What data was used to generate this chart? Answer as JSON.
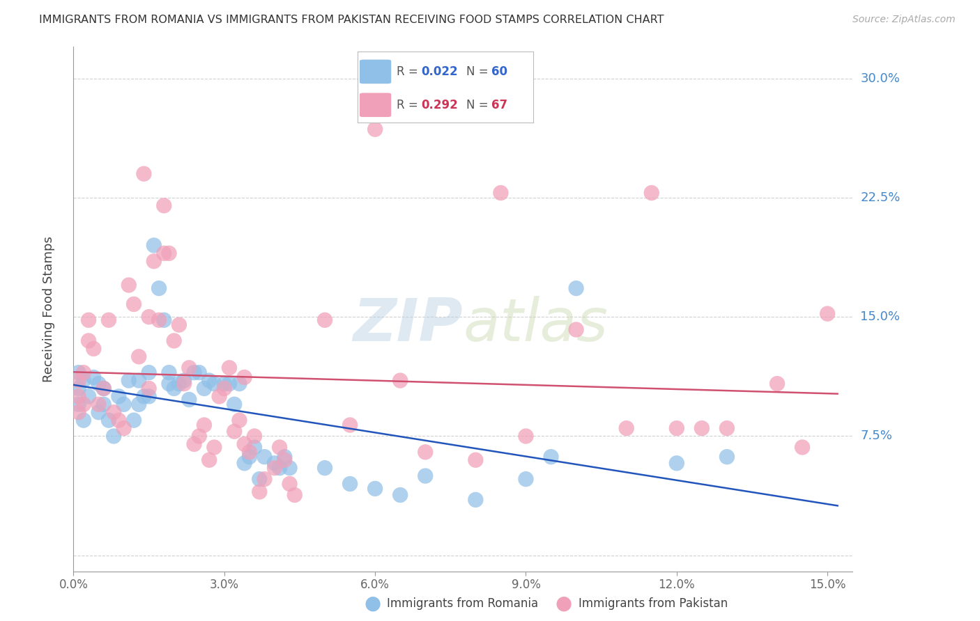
{
  "title": "IMMIGRANTS FROM ROMANIA VS IMMIGRANTS FROM PAKISTAN RECEIVING FOOD STAMPS CORRELATION CHART",
  "source": "Source: ZipAtlas.com",
  "ylabel": "Receiving Food Stamps",
  "xlim": [
    0.0,
    0.155
  ],
  "ylim": [
    -0.01,
    0.32
  ],
  "ytick_vals": [
    0.0,
    0.075,
    0.15,
    0.225,
    0.3
  ],
  "ytick_labels": [
    "",
    "7.5%",
    "15.0%",
    "22.5%",
    "30.0%"
  ],
  "xtick_vals": [
    0.0,
    0.03,
    0.06,
    0.09,
    0.12,
    0.15
  ],
  "xtick_labels": [
    "0.0%",
    "3.0%",
    "6.0%",
    "9.0%",
    "12.0%",
    "15.0%"
  ],
  "romania_color": "#90c0e8",
  "pakistan_color": "#f0a0b8",
  "romania_line_color": "#2255bb",
  "pakistan_line_color": "#d05070",
  "watermark_text": "ZIPatlas",
  "romania_points_x": [
    0.001,
    0.001,
    0.001,
    0.002,
    0.002,
    0.003,
    0.004,
    0.005,
    0.005,
    0.006,
    0.006,
    0.007,
    0.008,
    0.009,
    0.01,
    0.011,
    0.012,
    0.013,
    0.013,
    0.014,
    0.015,
    0.015,
    0.016,
    0.017,
    0.018,
    0.019,
    0.019,
    0.02,
    0.021,
    0.022,
    0.023,
    0.024,
    0.025,
    0.026,
    0.027,
    0.028,
    0.03,
    0.031,
    0.032,
    0.033,
    0.034,
    0.035,
    0.036,
    0.037,
    0.038,
    0.04,
    0.041,
    0.042,
    0.043,
    0.05,
    0.055,
    0.06,
    0.065,
    0.07,
    0.08,
    0.09,
    0.095,
    0.1,
    0.12,
    0.13
  ],
  "romania_points_y": [
    0.115,
    0.105,
    0.095,
    0.11,
    0.085,
    0.1,
    0.112,
    0.108,
    0.09,
    0.095,
    0.105,
    0.085,
    0.075,
    0.1,
    0.095,
    0.11,
    0.085,
    0.095,
    0.11,
    0.1,
    0.115,
    0.1,
    0.195,
    0.168,
    0.148,
    0.115,
    0.108,
    0.105,
    0.108,
    0.11,
    0.098,
    0.115,
    0.115,
    0.105,
    0.11,
    0.108,
    0.108,
    0.108,
    0.095,
    0.108,
    0.058,
    0.062,
    0.068,
    0.048,
    0.062,
    0.058,
    0.055,
    0.062,
    0.055,
    0.055,
    0.045,
    0.042,
    0.038,
    0.05,
    0.035,
    0.048,
    0.062,
    0.168,
    0.058,
    0.062
  ],
  "pakistan_points_x": [
    0.001,
    0.001,
    0.001,
    0.002,
    0.002,
    0.003,
    0.003,
    0.004,
    0.005,
    0.006,
    0.007,
    0.008,
    0.009,
    0.01,
    0.011,
    0.012,
    0.013,
    0.014,
    0.015,
    0.015,
    0.016,
    0.017,
    0.018,
    0.018,
    0.019,
    0.02,
    0.021,
    0.022,
    0.023,
    0.024,
    0.025,
    0.026,
    0.027,
    0.028,
    0.029,
    0.03,
    0.031,
    0.032,
    0.033,
    0.034,
    0.034,
    0.035,
    0.036,
    0.037,
    0.038,
    0.04,
    0.041,
    0.042,
    0.043,
    0.044,
    0.05,
    0.055,
    0.06,
    0.065,
    0.07,
    0.08,
    0.085,
    0.09,
    0.1,
    0.11,
    0.115,
    0.12,
    0.125,
    0.13,
    0.14,
    0.145,
    0.15
  ],
  "pakistan_points_y": [
    0.11,
    0.1,
    0.09,
    0.115,
    0.095,
    0.148,
    0.135,
    0.13,
    0.095,
    0.105,
    0.148,
    0.09,
    0.085,
    0.08,
    0.17,
    0.158,
    0.125,
    0.24,
    0.105,
    0.15,
    0.185,
    0.148,
    0.22,
    0.19,
    0.19,
    0.135,
    0.145,
    0.108,
    0.118,
    0.07,
    0.075,
    0.082,
    0.06,
    0.068,
    0.1,
    0.105,
    0.118,
    0.078,
    0.085,
    0.07,
    0.112,
    0.065,
    0.075,
    0.04,
    0.048,
    0.055,
    0.068,
    0.06,
    0.045,
    0.038,
    0.148,
    0.082,
    0.268,
    0.11,
    0.065,
    0.06,
    0.228,
    0.075,
    0.142,
    0.08,
    0.228,
    0.08,
    0.08,
    0.08,
    0.108,
    0.068,
    0.152
  ]
}
